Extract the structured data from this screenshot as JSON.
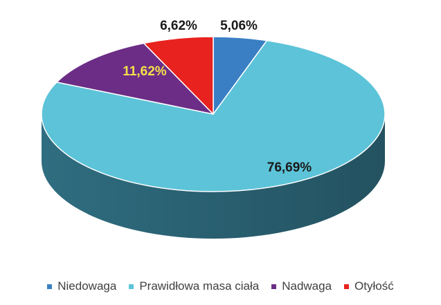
{
  "chart_data": {
    "type": "pie",
    "title": "",
    "categories": [
      "Niedowaga",
      "Prawidłowa masa ciała",
      "Nadwaga",
      "Otyłość"
    ],
    "values": [
      5.06,
      76.69,
      11.62,
      6.62
    ],
    "labels": [
      "5,06%",
      "76,69%",
      "11,62%",
      "6,62%"
    ],
    "colors": [
      "#3a7fc4",
      "#5cc3d8",
      "#6b2d86",
      "#e8221e"
    ],
    "side_colors": [
      "#2a5f93",
      "#2f6d80",
      "#4a1f5c",
      "#a01715"
    ],
    "label_colors": [
      "#1a1a1a",
      "#1a1a1a",
      "#f3e24a",
      "#1a1a1a"
    ],
    "legend_placement": "bottom",
    "style": "3d"
  }
}
